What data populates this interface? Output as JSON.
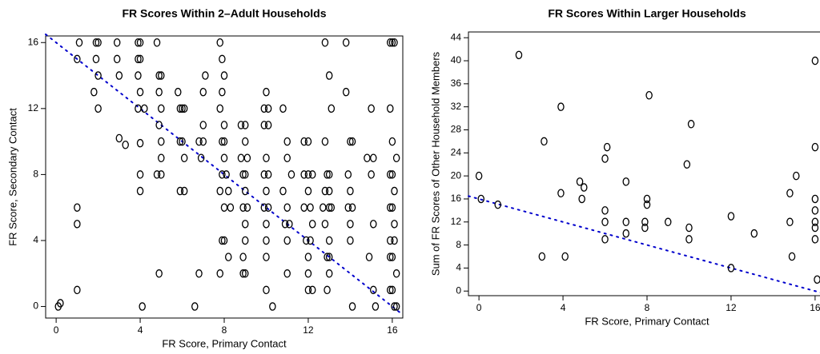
{
  "chart_data": [
    {
      "type": "scatter",
      "title": "FR Scores Within 2–Adult Households",
      "x_label": "FR Score, Primary Contact",
      "y_label": "FR Score, Secondary Contact",
      "xlim": [
        -0.5,
        16.5
      ],
      "ylim": [
        -0.7,
        16.4
      ],
      "xticks": [
        0,
        4,
        8,
        12,
        16
      ],
      "yticks": [
        0,
        4,
        8,
        12,
        16
      ],
      "color": "#000000",
      "reference_line": {
        "intercept": 16,
        "slope": -1,
        "color": "#0000cc"
      },
      "points": [
        [
          0.2,
          0.2
        ],
        [
          0.1,
          0
        ],
        [
          1,
          1
        ],
        [
          1,
          5
        ],
        [
          1,
          6
        ],
        [
          1,
          15
        ],
        [
          1.1,
          16
        ],
        [
          1.9,
          16
        ],
        [
          2,
          16
        ],
        [
          1.9,
          15
        ],
        [
          2,
          14
        ],
        [
          1.8,
          13
        ],
        [
          2,
          12
        ],
        [
          2.9,
          16
        ],
        [
          2.9,
          15
        ],
        [
          3,
          14
        ],
        [
          3,
          10.2
        ],
        [
          3.3,
          9.8
        ],
        [
          3.9,
          16
        ],
        [
          4,
          16
        ],
        [
          3.9,
          15
        ],
        [
          4,
          15
        ],
        [
          3.9,
          14
        ],
        [
          4,
          13
        ],
        [
          3.9,
          12
        ],
        [
          4.2,
          12
        ],
        [
          4,
          9.9
        ],
        [
          4,
          8
        ],
        [
          4,
          7
        ],
        [
          4.1,
          0
        ],
        [
          4.8,
          16
        ],
        [
          4.9,
          14
        ],
        [
          5,
          14
        ],
        [
          4.9,
          13
        ],
        [
          5,
          12
        ],
        [
          4.9,
          11
        ],
        [
          5,
          10
        ],
        [
          5,
          9
        ],
        [
          5,
          8
        ],
        [
          4.8,
          8
        ],
        [
          4.9,
          2
        ],
        [
          5.8,
          13
        ],
        [
          6,
          12
        ],
        [
          5.9,
          12
        ],
        [
          6.1,
          12
        ],
        [
          5.9,
          10
        ],
        [
          6,
          10
        ],
        [
          6.1,
          9
        ],
        [
          5.9,
          7
        ],
        [
          6.1,
          7
        ],
        [
          6.8,
          10
        ],
        [
          7,
          10
        ],
        [
          7,
          11
        ],
        [
          7,
          13
        ],
        [
          7.1,
          14
        ],
        [
          6.9,
          9
        ],
        [
          6.8,
          2
        ],
        [
          6.6,
          0
        ],
        [
          7.8,
          16
        ],
        [
          7.9,
          15
        ],
        [
          8,
          14
        ],
        [
          7.9,
          13
        ],
        [
          7.8,
          12
        ],
        [
          8,
          11
        ],
        [
          7.9,
          10
        ],
        [
          8,
          10
        ],
        [
          8,
          9
        ],
        [
          7.9,
          8
        ],
        [
          8.1,
          8
        ],
        [
          7.8,
          7
        ],
        [
          8.2,
          7
        ],
        [
          8,
          6
        ],
        [
          8.3,
          6
        ],
        [
          7.9,
          4
        ],
        [
          8,
          4
        ],
        [
          8.2,
          3
        ],
        [
          7.8,
          2
        ],
        [
          8.8,
          11
        ],
        [
          9,
          11
        ],
        [
          9,
          10
        ],
        [
          8.8,
          9
        ],
        [
          9.1,
          9
        ],
        [
          8.9,
          8
        ],
        [
          9,
          8
        ],
        [
          9,
          7
        ],
        [
          8.9,
          6
        ],
        [
          9.1,
          6
        ],
        [
          9,
          5
        ],
        [
          9,
          4
        ],
        [
          8.9,
          3
        ],
        [
          8.9,
          2
        ],
        [
          9,
          2
        ],
        [
          10,
          13
        ],
        [
          9.9,
          12
        ],
        [
          10.1,
          12
        ],
        [
          9.9,
          11
        ],
        [
          10.1,
          11
        ],
        [
          10,
          9
        ],
        [
          10.1,
          8
        ],
        [
          9.9,
          8
        ],
        [
          10,
          7
        ],
        [
          9.9,
          6
        ],
        [
          10.1,
          6
        ],
        [
          10,
          5
        ],
        [
          10,
          4
        ],
        [
          10,
          3
        ],
        [
          10,
          1
        ],
        [
          10.3,
          0
        ],
        [
          10.8,
          12
        ],
        [
          11,
          10
        ],
        [
          11,
          9
        ],
        [
          11.2,
          8
        ],
        [
          10.8,
          7
        ],
        [
          11,
          6
        ],
        [
          11.1,
          5
        ],
        [
          10.9,
          5
        ],
        [
          11,
          4
        ],
        [
          11,
          2
        ],
        [
          11.8,
          10
        ],
        [
          12,
          10
        ],
        [
          12,
          8
        ],
        [
          11.8,
          8
        ],
        [
          12.2,
          8
        ],
        [
          12,
          7
        ],
        [
          11.8,
          6
        ],
        [
          12.1,
          6
        ],
        [
          12.2,
          5
        ],
        [
          11.9,
          4
        ],
        [
          12.1,
          4
        ],
        [
          12,
          3
        ],
        [
          12,
          2
        ],
        [
          12,
          1
        ],
        [
          12.2,
          1
        ],
        [
          12.8,
          16
        ],
        [
          13,
          14
        ],
        [
          13.1,
          12
        ],
        [
          12.8,
          10
        ],
        [
          12.9,
          8
        ],
        [
          13,
          8
        ],
        [
          12.8,
          7
        ],
        [
          13,
          7
        ],
        [
          12.7,
          6
        ],
        [
          13,
          6
        ],
        [
          13.1,
          6
        ],
        [
          12.8,
          5
        ],
        [
          13,
          4
        ],
        [
          12.9,
          3
        ],
        [
          13,
          3
        ],
        [
          13,
          2
        ],
        [
          12.9,
          1
        ],
        [
          13.8,
          16
        ],
        [
          13.8,
          13
        ],
        [
          14,
          10
        ],
        [
          14.1,
          10
        ],
        [
          13.9,
          8
        ],
        [
          14,
          7
        ],
        [
          14.1,
          6
        ],
        [
          13.9,
          6
        ],
        [
          14,
          5
        ],
        [
          14,
          4
        ],
        [
          14.1,
          0
        ],
        [
          14.9,
          3
        ],
        [
          15,
          8
        ],
        [
          15.1,
          9
        ],
        [
          14.8,
          9
        ],
        [
          15,
          12
        ],
        [
          15.1,
          5
        ],
        [
          15.1,
          1
        ],
        [
          15.2,
          0
        ],
        [
          15.9,
          16
        ],
        [
          16,
          16
        ],
        [
          16.1,
          16
        ],
        [
          15.9,
          12
        ],
        [
          16,
          10
        ],
        [
          16.2,
          9
        ],
        [
          16,
          8
        ],
        [
          15.9,
          8
        ],
        [
          16.1,
          7
        ],
        [
          15.9,
          6
        ],
        [
          16,
          6
        ],
        [
          16.1,
          5
        ],
        [
          15.9,
          4
        ],
        [
          16.1,
          4
        ],
        [
          16,
          3
        ],
        [
          15.9,
          3
        ],
        [
          16.2,
          2
        ],
        [
          15.9,
          1
        ],
        [
          16,
          1
        ],
        [
          16.1,
          0
        ],
        [
          16.2,
          0
        ]
      ]
    },
    {
      "type": "scatter",
      "title": "FR Scores Within Larger Households",
      "x_label": "FR Score, Primary Contact",
      "y_label": "Sum of FR Scores of Other Household Members",
      "xlim": [
        -0.5,
        16.5
      ],
      "ylim": [
        -0.8,
        45
      ],
      "xticks": [
        0,
        4,
        8,
        12,
        16
      ],
      "yticks": [
        0,
        4,
        8,
        12,
        16,
        20,
        24,
        28,
        32,
        36,
        40,
        44
      ],
      "color": "#000000",
      "reference_line": {
        "intercept": 16,
        "slope": -1,
        "color": "#0000cc"
      },
      "points": [
        [
          0,
          20
        ],
        [
          0.1,
          16
        ],
        [
          0.9,
          15
        ],
        [
          1.9,
          41
        ],
        [
          3,
          6
        ],
        [
          3.1,
          26
        ],
        [
          3.9,
          32
        ],
        [
          4.1,
          6
        ],
        [
          3.9,
          17
        ],
        [
          4.8,
          19
        ],
        [
          4.9,
          16
        ],
        [
          5,
          18
        ],
        [
          6,
          14
        ],
        [
          6,
          12
        ],
        [
          6,
          9
        ],
        [
          6.1,
          25
        ],
        [
          6,
          23
        ],
        [
          7,
          19
        ],
        [
          7,
          12
        ],
        [
          7,
          10
        ],
        [
          7.9,
          11
        ],
        [
          7.9,
          12
        ],
        [
          8,
          16
        ],
        [
          8,
          15
        ],
        [
          8.1,
          34
        ],
        [
          9,
          12
        ],
        [
          9.9,
          22
        ],
        [
          10,
          11
        ],
        [
          10,
          9
        ],
        [
          10.1,
          29
        ],
        [
          12,
          13
        ],
        [
          12,
          4
        ],
        [
          13.1,
          10
        ],
        [
          14.8,
          17
        ],
        [
          14.8,
          12
        ],
        [
          14.9,
          6
        ],
        [
          15.1,
          20
        ],
        [
          16,
          40
        ],
        [
          16,
          25
        ],
        [
          16,
          16
        ],
        [
          16,
          14
        ],
        [
          16,
          12
        ],
        [
          16,
          11
        ],
        [
          16,
          9
        ],
        [
          16.1,
          2
        ]
      ]
    }
  ]
}
